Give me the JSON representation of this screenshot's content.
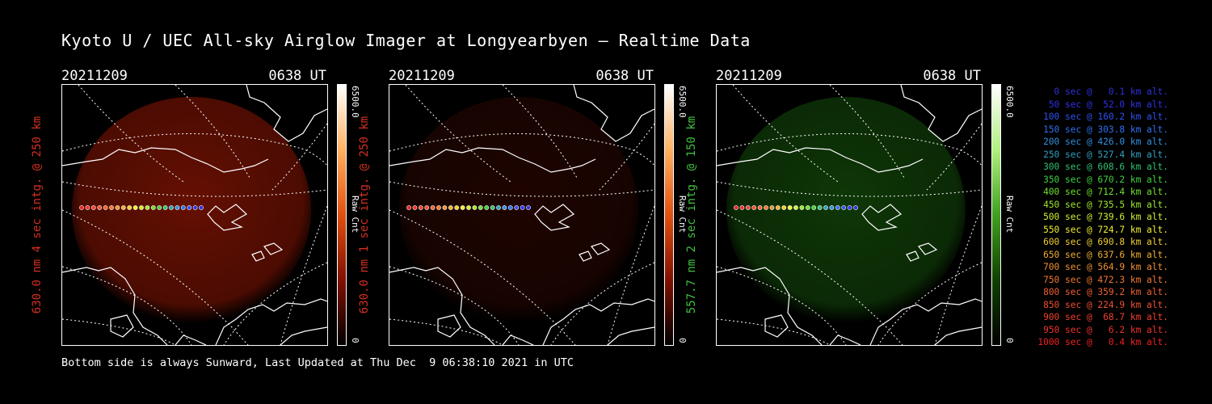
{
  "title": "Kyoto U / UEC All-sky Airglow Imager at Longyearbyen — Realtime Data",
  "panels": [
    {
      "date": "20211209",
      "time": "0638 UT",
      "ylabel": "630.0 nm 4 sec intg. @ 250 km",
      "label_color": "#d33020",
      "tint": "red",
      "glow_opacity": 0.6,
      "cbar_max": "6500.0",
      "cbar_unit": "Raw Cnt",
      "cbar_min": "0",
      "cbar_colors": [
        "#ffffff",
        "#ffb060",
        "#e05010",
        "#801000",
        "#000000"
      ]
    },
    {
      "date": "20211209",
      "time": "0638 UT",
      "ylabel": "630.0 nm 1 sec intg. @ 250 km",
      "label_color": "#d33020",
      "tint": "red",
      "glow_opacity": 0.18,
      "cbar_max": "6500.0",
      "cbar_unit": "Raw Cnt",
      "cbar_min": "0",
      "cbar_colors": [
        "#ffffff",
        "#ffb060",
        "#e05010",
        "#801000",
        "#000000"
      ]
    },
    {
      "date": "20211209",
      "time": "0638 UT",
      "ylabel": "557.7 nm 2 sec intg. @ 150 km",
      "label_color": "#40c040",
      "tint": "green",
      "glow_opacity": 0.45,
      "cbar_max": "6500.0",
      "cbar_unit": "Raw Cnt",
      "cbar_min": "0",
      "cbar_colors": [
        "#ffffff",
        "#b0f080",
        "#40a020",
        "#104000",
        "#000000"
      ]
    }
  ],
  "legend": [
    {
      "text": "0 sec @   0.1 km alt.",
      "color": "#3030e0"
    },
    {
      "text": "50 sec @  52.0 km alt.",
      "color": "#3030e8"
    },
    {
      "text": "100 sec @ 160.2 km alt.",
      "color": "#3050f0"
    },
    {
      "text": "150 sec @ 303.8 km alt.",
      "color": "#3070f0"
    },
    {
      "text": "200 sec @ 426.0 km alt.",
      "color": "#3090e0"
    },
    {
      "text": "250 sec @ 527.4 km alt.",
      "color": "#30a0c0"
    },
    {
      "text": "300 sec @ 608.6 km alt.",
      "color": "#30c070"
    },
    {
      "text": "350 sec @ 670.2 km alt.",
      "color": "#40d040"
    },
    {
      "text": "400 sec @ 712.4 km alt.",
      "color": "#70e030"
    },
    {
      "text": "450 sec @ 735.5 km alt.",
      "color": "#a0e830"
    },
    {
      "text": "500 sec @ 739.6 km alt.",
      "color": "#d0f030"
    },
    {
      "text": "550 sec @ 724.7 km alt.",
      "color": "#f0f030"
    },
    {
      "text": "600 sec @ 690.8 km alt.",
      "color": "#f0d030"
    },
    {
      "text": "650 sec @ 637.6 km alt.",
      "color": "#f0b030"
    },
    {
      "text": "700 sec @ 564.9 km alt.",
      "color": "#f09030"
    },
    {
      "text": "750 sec @ 472.3 km alt.",
      "color": "#f07830"
    },
    {
      "text": "800 sec @ 359.2 km alt.",
      "color": "#f06030"
    },
    {
      "text": "850 sec @ 224.9 km alt.",
      "color": "#f05030"
    },
    {
      "text": "900 sec @  68.7 km alt.",
      "color": "#f04030"
    },
    {
      "text": "950 sec @   6.2 km alt.",
      "color": "#f03030"
    },
    {
      "text": "1000 sec @   0.4 km alt.",
      "color": "#f02020"
    }
  ],
  "footer": "Bottom side is always Sunward, Last Updated at Thu Dec  9 06:38:10 2021 in UTC"
}
